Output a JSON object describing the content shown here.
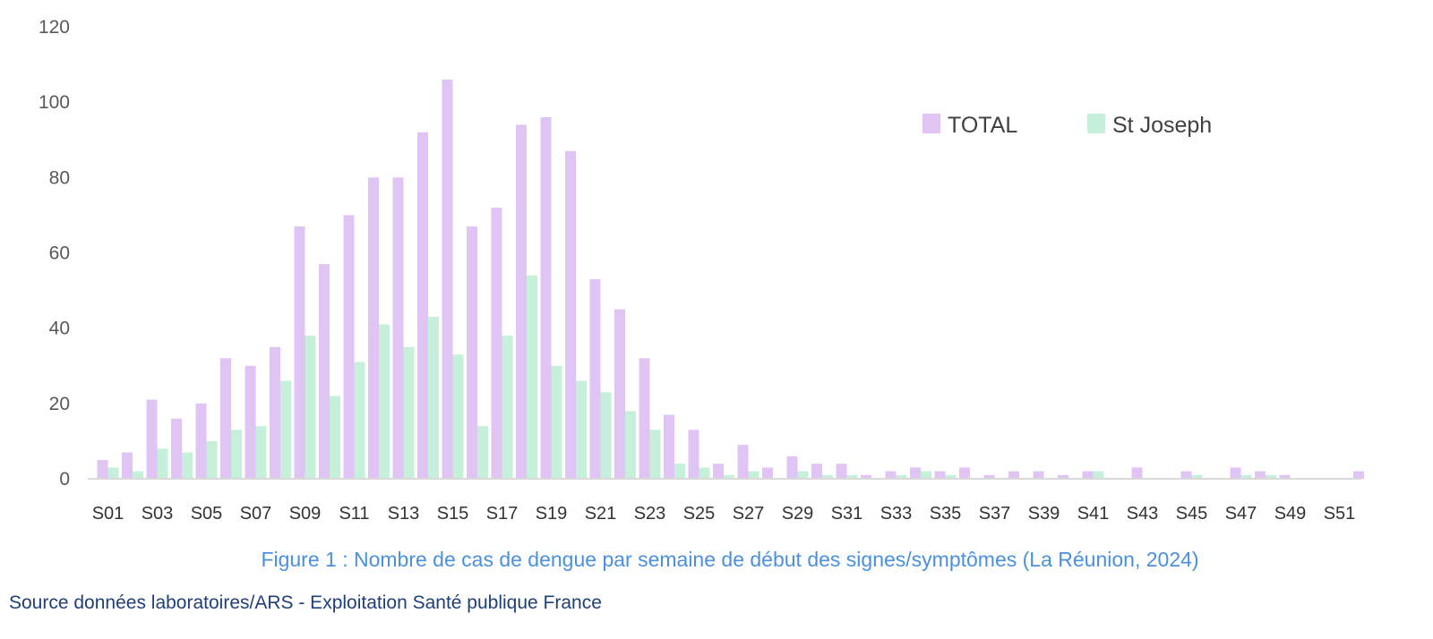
{
  "chart_data": {
    "type": "bar",
    "categories": [
      "S01",
      "S02",
      "S03",
      "S04",
      "S05",
      "S06",
      "S07",
      "S08",
      "S09",
      "S10",
      "S11",
      "S12",
      "S13",
      "S14",
      "S15",
      "S16",
      "S17",
      "S18",
      "S19",
      "S20",
      "S21",
      "S22",
      "S23",
      "S24",
      "S25",
      "S26",
      "S27",
      "S28",
      "S29",
      "S30",
      "S31",
      "S32",
      "S33",
      "S34",
      "S35",
      "S36",
      "S37",
      "S38",
      "S39",
      "S40",
      "S41",
      "S42",
      "S43",
      "S44",
      "S45",
      "S46",
      "S47",
      "S48",
      "S49",
      "S50",
      "S51",
      "S52"
    ],
    "tick_labels": [
      "S01",
      "S03",
      "S05",
      "S07",
      "S09",
      "S11",
      "S13",
      "S15",
      "S17",
      "S19",
      "S21",
      "S23",
      "S25",
      "S27",
      "S29",
      "S31",
      "S33",
      "S35",
      "S37",
      "S39",
      "S41",
      "S43",
      "S45",
      "S47",
      "S49",
      "S51"
    ],
    "series": [
      {
        "name": "TOTAL",
        "color": "#e0c4f4",
        "values": [
          5,
          7,
          21,
          16,
          20,
          32,
          30,
          35,
          67,
          57,
          70,
          80,
          80,
          92,
          106,
          67,
          72,
          94,
          96,
          87,
          53,
          45,
          32,
          17,
          13,
          4,
          9,
          3,
          6,
          4,
          4,
          1,
          2,
          3,
          2,
          3,
          1,
          2,
          2,
          1,
          2,
          0,
          3,
          0,
          2,
          0,
          3,
          2,
          1,
          0,
          0,
          2
        ]
      },
      {
        "name": "St Joseph",
        "color": "#c6f0da",
        "values": [
          3,
          2,
          8,
          7,
          10,
          13,
          14,
          26,
          38,
          22,
          31,
          41,
          35,
          43,
          33,
          14,
          38,
          54,
          30,
          26,
          23,
          18,
          13,
          4,
          3,
          1,
          2,
          0,
          2,
          1,
          1,
          0,
          1,
          2,
          1,
          0,
          0,
          0,
          0,
          0,
          2,
          0,
          0,
          0,
          1,
          0,
          1,
          1,
          0,
          0,
          0,
          0
        ]
      }
    ],
    "yticks": [
      0,
      20,
      40,
      60,
      80,
      100,
      120
    ],
    "ylim": [
      0,
      120
    ],
    "grid": false,
    "legend_position": "top-right",
    "title": "",
    "xlabel": "",
    "ylabel": ""
  },
  "caption": "Figure 1 : Nombre de cas de dengue par semaine de début des signes/symptômes (La Réunion, 2024)",
  "source": "Source données laboratoires/ARS - Exploitation Santé publique France"
}
